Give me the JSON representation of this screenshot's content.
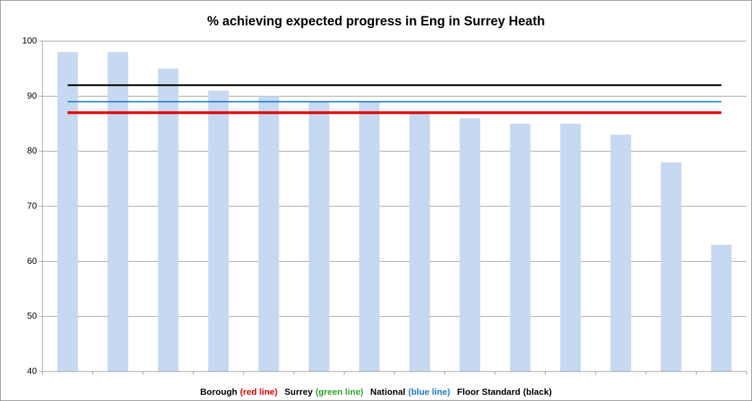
{
  "chart_data": {
    "type": "bar",
    "title": "% achieving expected progress in Eng in Surrey Heath",
    "categories": [
      null,
      null,
      null,
      null,
      null,
      null,
      null,
      null,
      null,
      null,
      null,
      null,
      null,
      null
    ],
    "values": [
      98,
      98,
      95,
      91,
      90,
      89,
      89,
      87,
      86,
      85,
      85,
      83,
      78,
      63
    ],
    "color": "#c6d9f1",
    "ylim": [
      40,
      100
    ],
    "yticks": [
      40,
      50,
      60,
      70,
      80,
      90,
      100
    ],
    "grid": true,
    "reference_lines": [
      {
        "value": 92,
        "color": "#000000"
      },
      {
        "value": 89,
        "color": "#1f7bc6"
      },
      {
        "value": 87,
        "color": "#e00000"
      }
    ],
    "legend": [
      {
        "text": "Borough",
        "color": "#000000"
      },
      {
        "text": "(red line)",
        "color": "#e00000"
      },
      {
        "text": "Surrey",
        "color": "#000000"
      },
      {
        "text": "(green line)",
        "color": "#2ea52e"
      },
      {
        "text": "National",
        "color": "#000000"
      },
      {
        "text": "(blue line)",
        "color": "#1f7bc6"
      },
      {
        "text": "Floor Standard",
        "color": "#000000"
      },
      {
        "text": "(black)",
        "color": "#000000"
      }
    ]
  }
}
